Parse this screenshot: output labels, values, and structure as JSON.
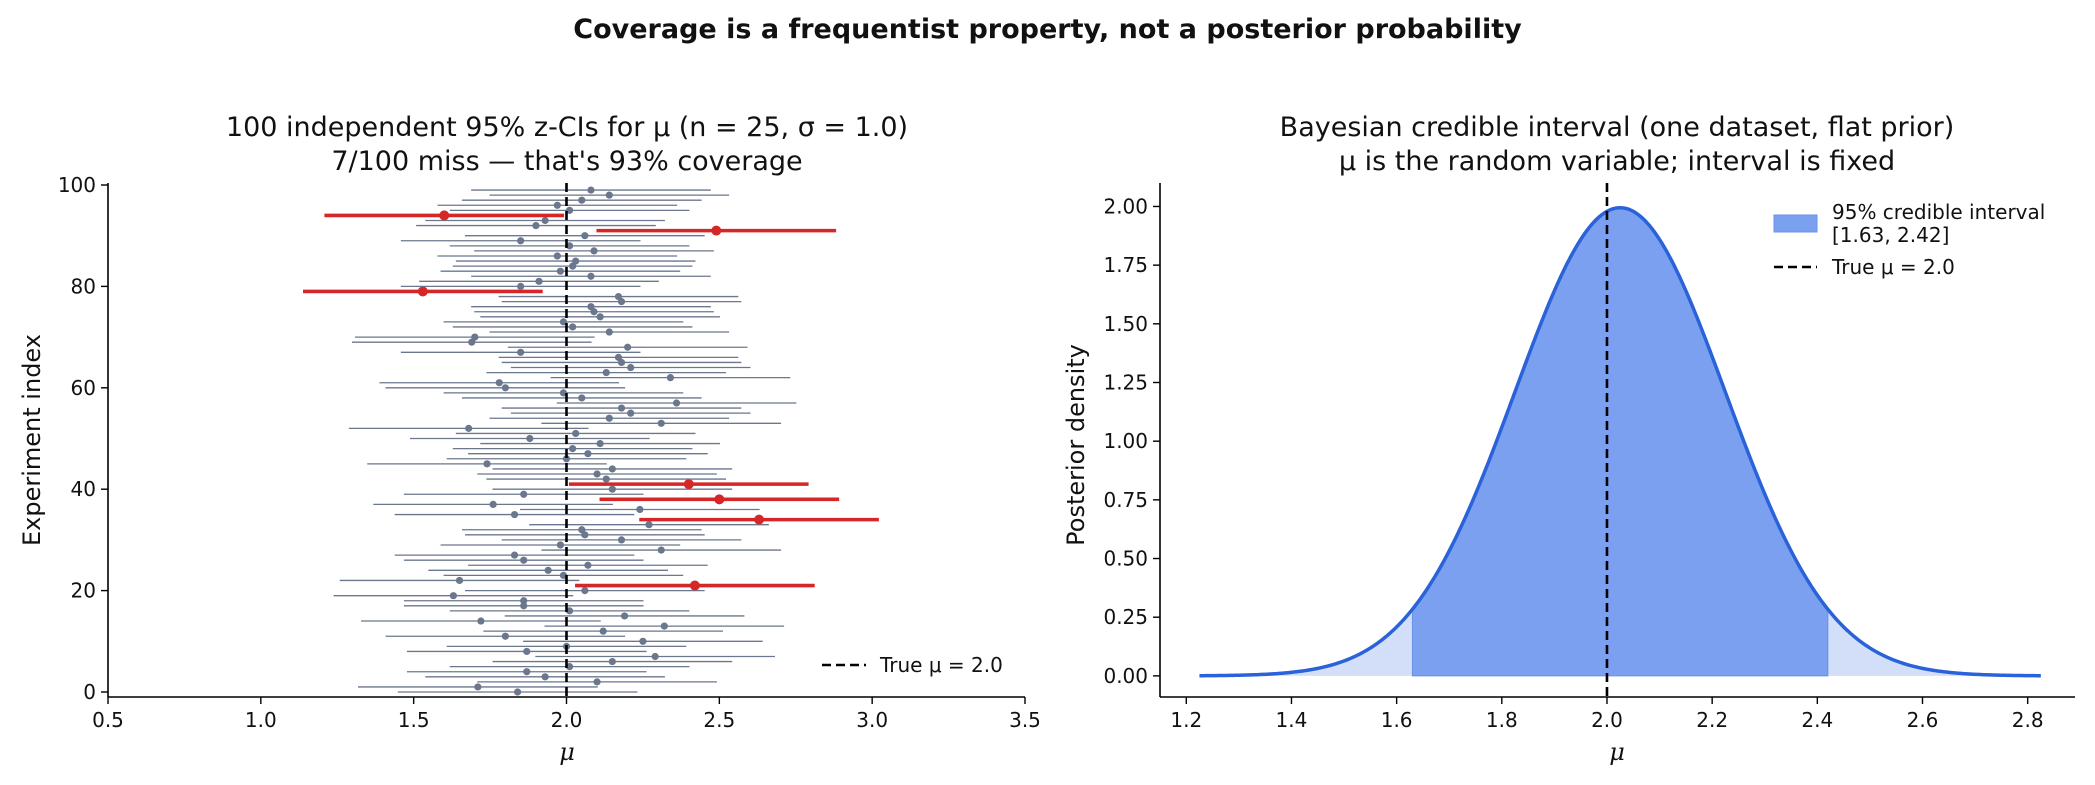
{
  "suptitle": "Coverage is a frequentist property, not a posterior probability",
  "chart_data": [
    {
      "type": "errorbar",
      "title_line1": "100 independent 95% z-CIs for μ  (n = 25, σ = 1.0)",
      "title_line2": "7/100 miss — that's 93% coverage",
      "xlabel": "μ",
      "ylabel": "Experiment index",
      "xlim": [
        0.5,
        3.5
      ],
      "ylim": [
        0,
        100
      ],
      "xticks": [
        "0.5",
        "1.0",
        "1.5",
        "2.0",
        "2.5",
        "3.0",
        "3.5"
      ],
      "yticks": [
        "0",
        "20",
        "40",
        "60",
        "80",
        "100"
      ],
      "half_width": 0.392,
      "true_mu": 2.0,
      "legend": [
        {
          "label": "True μ = 2.0",
          "style": "dashed",
          "color": "#000000"
        }
      ],
      "colors": {
        "covers": "#6b778c",
        "miss": "#d62728",
        "truth": "#000000"
      },
      "means": [
        1.84,
        1.71,
        2.1,
        1.93,
        1.87,
        2.01,
        2.15,
        2.29,
        1.87,
        2.0,
        2.25,
        1.8,
        2.12,
        2.32,
        1.72,
        2.19,
        2.01,
        1.86,
        1.86,
        1.63,
        2.06,
        2.42,
        1.65,
        1.99,
        1.94,
        2.07,
        1.86,
        1.83,
        2.31,
        1.98,
        2.18,
        2.06,
        2.05,
        2.27,
        2.63,
        1.83,
        2.24,
        1.76,
        2.5,
        1.86,
        2.15,
        2.4,
        2.13,
        2.1,
        2.15,
        1.74,
        2.0,
        2.07,
        2.02,
        2.11,
        1.88,
        2.03,
        1.68,
        2.31,
        2.14,
        2.21,
        2.18,
        2.36,
        2.05,
        1.99,
        1.8,
        1.78,
        2.34,
        2.13,
        2.21,
        2.18,
        2.17,
        1.85,
        2.2,
        1.69,
        1.7,
        2.14,
        2.02,
        1.99,
        2.11,
        2.09,
        2.08,
        2.18,
        2.17,
        1.53,
        1.85,
        1.91,
        2.08,
        1.98,
        2.02,
        2.03,
        1.97,
        2.09,
        2.01,
        1.85,
        2.06,
        2.49,
        1.9,
        1.93,
        1.6,
        2.01,
        1.97,
        2.05,
        2.14,
        2.08
      ]
    },
    {
      "type": "area",
      "title_line1": "Bayesian credible interval (one dataset, flat prior)",
      "title_line2": "μ is the random variable; interval is fixed",
      "xlabel": "μ",
      "ylabel": "Posterior density",
      "xlim": [
        1.15,
        2.89
      ],
      "ylim": [
        -0.09,
        2.1
      ],
      "xticks": [
        "1.2",
        "1.4",
        "1.6",
        "1.8",
        "2.0",
        "2.2",
        "2.4",
        "2.6",
        "2.8"
      ],
      "yticks": [
        "0.00",
        "0.25",
        "0.50",
        "0.75",
        "1.00",
        "1.25",
        "1.50",
        "1.75",
        "2.00"
      ],
      "posterior_mean": 2.025,
      "posterior_sd": 0.2,
      "x_range": [
        1.225,
        2.825
      ],
      "interval": [
        1.63,
        2.42
      ],
      "true_mu": 2.0,
      "legend": [
        {
          "label_line1": "95% credible interval",
          "label_line2": "[1.63, 2.42]",
          "style": "patch",
          "color": "#7ba0f0"
        },
        {
          "label": "True μ = 2.0",
          "style": "dashed",
          "color": "#000000"
        }
      ],
      "colors": {
        "curve": "#2962d9",
        "interval_fill": "#7ba0f0",
        "tail_fill": "#d3def8",
        "truth": "#000000"
      }
    }
  ]
}
